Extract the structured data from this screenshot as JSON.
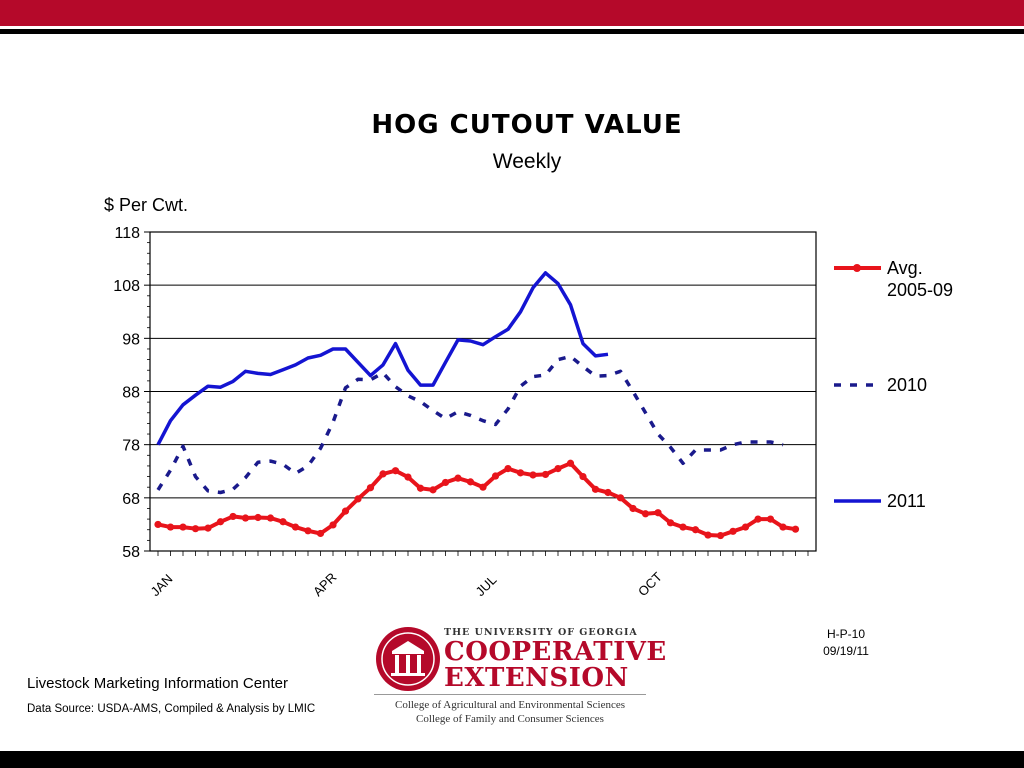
{
  "footer": {
    "center": "Livestock Marketing Information Center",
    "source": "Data Source:  USDA-AMS, Compiled & Analysis by LMIC",
    "code": "H-P-10",
    "date": "09/19/11"
  },
  "logo": {
    "university": "THE UNIVERSITY OF GEORGIA",
    "line1": "COOPERATIVE",
    "line2": "EXTENSION",
    "college1": "College of Agricultural and Environmental Sciences",
    "college2": "College of Family and Consumer Sciences"
  },
  "colors": {
    "brand_red": "#b5092a",
    "avg_series": "#e8141b",
    "series_2010": "#1a1a8c",
    "series_2011": "#1414d2"
  },
  "chart_data": {
    "type": "line",
    "title": "HOG  CUTOUT  VALUE",
    "subtitle": "Weekly",
    "ylabel": "$ Per Cwt.",
    "ylim": [
      58,
      118
    ],
    "yticks": [
      58,
      68,
      78,
      88,
      98,
      108,
      118
    ],
    "x_range_weeks": [
      1,
      53
    ],
    "xticks": [
      {
        "label": "JAN",
        "week": 1
      },
      {
        "label": "APR",
        "week": 14
      },
      {
        "label": "JUL",
        "week": 27
      },
      {
        "label": "OCT",
        "week": 40
      }
    ],
    "grid": true,
    "legend_position": "right",
    "series": [
      {
        "name": "Avg.\n2005-09",
        "style": "solid-markers",
        "values": [
          63,
          62.5,
          62.5,
          62.2,
          62.3,
          63.5,
          64.5,
          64.2,
          64.3,
          64.2,
          63.5,
          62.5,
          61.8,
          61.3,
          62.9,
          65.5,
          67.8,
          69.9,
          72.5,
          73.1,
          71.9,
          69.8,
          69.5,
          70.9,
          71.7,
          71.0,
          70.0,
          72.1,
          73.5,
          72.7,
          72.3,
          72.4,
          73.5,
          74.5,
          72.0,
          69.6,
          69.0,
          68.0,
          66.0,
          65.0,
          65.2,
          63.3,
          62.5,
          62.0,
          61.0,
          60.9,
          61.7,
          62.5,
          64.0,
          64.0,
          62.5,
          62.1
        ]
      },
      {
        "name": "2010",
        "style": "dashed",
        "values": [
          69.5,
          73.2,
          77.7,
          72.0,
          69.3,
          69.0,
          69.6,
          71.8,
          74.7,
          74.9,
          74.3,
          72.6,
          74.0,
          77.3,
          82.2,
          88.7,
          90.3,
          90.2,
          91.5,
          88.9,
          87.2,
          86.1,
          84.4,
          82.9,
          84.2,
          83.5,
          82.5,
          81.8,
          84.7,
          89.0,
          90.8,
          91.1,
          94.0,
          94.6,
          92.7,
          90.9,
          91.0,
          91.8,
          88.0,
          84.0,
          80.0,
          77.5,
          74.5,
          77.0,
          77.0,
          77.0,
          78.0,
          78.5,
          78.5,
          78.5,
          78.0
        ]
      },
      {
        "name": "2011",
        "style": "solid",
        "values": [
          78.0,
          82.5,
          85.5,
          87.3,
          89.0,
          88.8,
          89.9,
          91.8,
          91.4,
          91.2,
          92.1,
          93.0,
          94.3,
          94.8,
          96.0,
          96.0,
          93.5,
          91.0,
          93.0,
          97.0,
          92.0,
          89.2,
          89.2,
          93.5,
          97.7,
          97.5,
          96.8,
          98.3,
          99.7,
          103.0,
          107.5,
          110.3,
          108.3,
          104.3,
          97.0,
          94.7,
          95.0
        ]
      }
    ]
  }
}
